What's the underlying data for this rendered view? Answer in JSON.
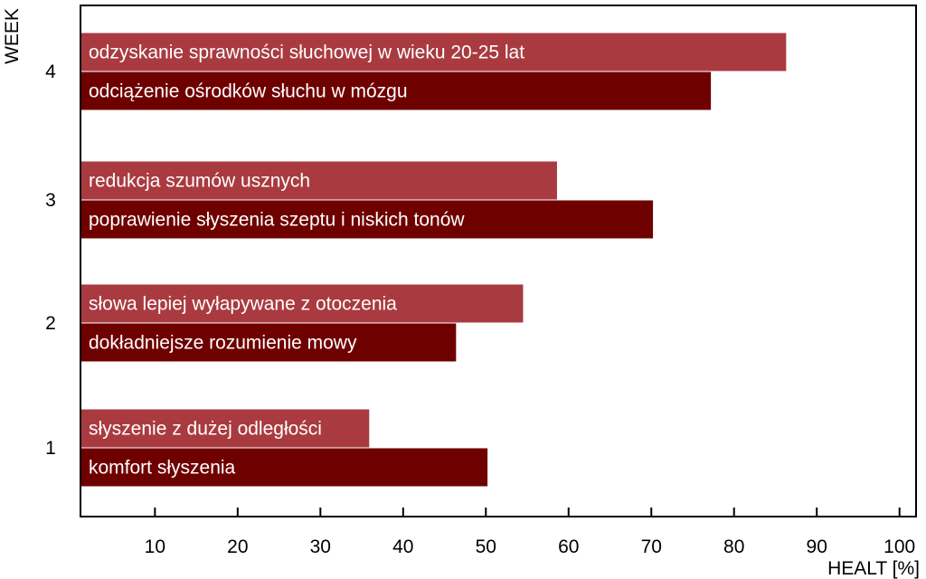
{
  "chart_data": {
    "type": "bar",
    "orientation": "horizontal",
    "xlabel": "HEALT [%]",
    "ylabel": "WEEK",
    "xlim": [
      1,
      102
    ],
    "xticks": [
      10,
      20,
      30,
      40,
      50,
      60,
      70,
      80,
      90,
      100
    ],
    "grid": false,
    "legend": "none",
    "categories": [
      "4",
      "3",
      "2",
      "1"
    ],
    "series": [
      {
        "color": "#a93b40",
        "values": [
          86.3,
          58.6,
          54.5,
          35.9
        ],
        "labels": [
          "odzyskanie sprawności słuchowej w wieku 20-25 lat",
          "redukcja szumów usznych",
          "słowa lepiej wyłapywane z otoczenia",
          "słyszenie z dużej odległości"
        ]
      },
      {
        "color": "#6f0000",
        "values": [
          77.2,
          70.2,
          46.4,
          50.2
        ],
        "labels": [
          "odciążenie ośrodków słuchu w mózgu",
          "poprawienie słyszenia szeptu i niskich tonów",
          "dokładniejsze rozumienie mowy",
          "komfort słyszenia"
        ]
      }
    ]
  }
}
